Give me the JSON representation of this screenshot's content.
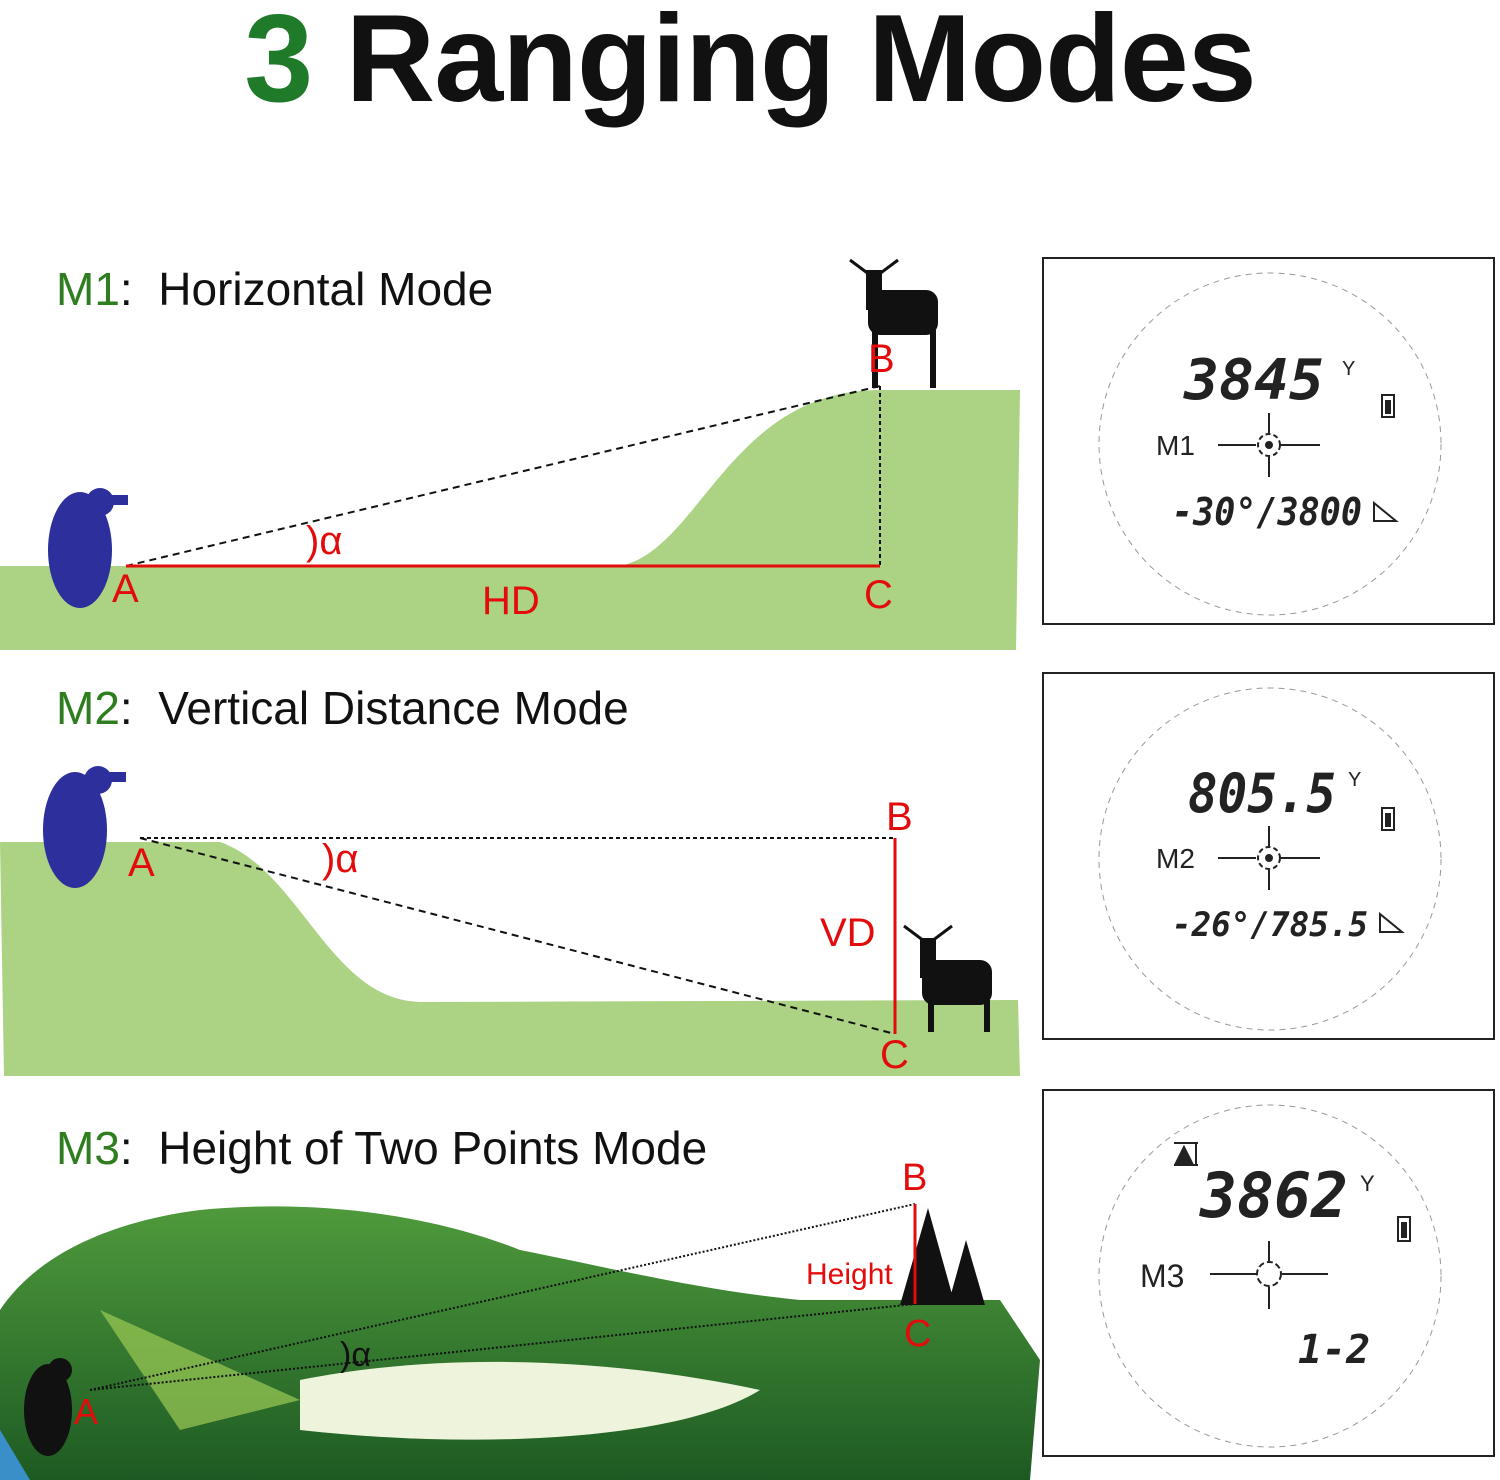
{
  "title": {
    "number": "3",
    "text": "Ranging Modes"
  },
  "colors": {
    "title_number": "#1f7a2a",
    "mode_code": "#2e7d1e",
    "label_red": "#e30b0b",
    "ground_green": "#acd283",
    "hiker_blue": "#2c2f9c"
  },
  "modes": [
    {
      "code": "M1",
      "separator": ":",
      "name": "Horizontal Mode",
      "labels": {
        "a": "A",
        "b": "B",
        "c": "C",
        "angle": ")α",
        "measure": "HD"
      },
      "lcd": {
        "main": "3845",
        "unit": "Y",
        "mode": "M1",
        "bottom": "-30°/3800",
        "icons": [
          "battery-icon",
          "crosshair-icon",
          "horizontal-triangle-icon"
        ]
      }
    },
    {
      "code": "M2",
      "separator": ":",
      "name": "Vertical Distance Mode",
      "labels": {
        "a": "A",
        "b": "B",
        "c": "C",
        "angle": ")α",
        "measure": "VD"
      },
      "lcd": {
        "main": "805.5",
        "unit": "Y",
        "mode": "M2",
        "bottom": "-26°/785.5",
        "icons": [
          "battery-icon",
          "crosshair-icon",
          "vertical-triangle-icon"
        ]
      }
    },
    {
      "code": "M3",
      "separator": ":",
      "name": "Height of Two Points Mode",
      "labels": {
        "a": "A",
        "b": "B",
        "c": "C",
        "angle": ")α",
        "measure": "Height"
      },
      "lcd": {
        "main": "3862",
        "unit": "Y",
        "mode": "M3",
        "bottom": "1-2",
        "icons": [
          "tree-height-icon",
          "battery-icon",
          "crosshair-icon"
        ]
      }
    }
  ]
}
